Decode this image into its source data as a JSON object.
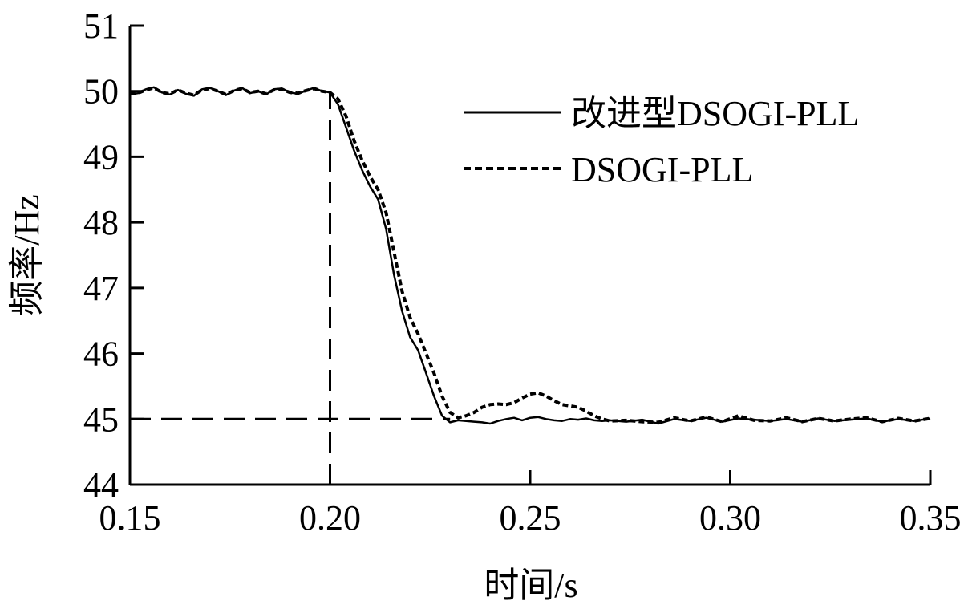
{
  "chart_data": {
    "type": "line",
    "xlabel": "时间/s",
    "ylabel": "频率/Hz",
    "xlim": [
      0.15,
      0.35
    ],
    "ylim": [
      44,
      51
    ],
    "xticks": [
      0.15,
      0.2,
      0.25,
      0.3,
      0.35
    ],
    "xtick_labels": [
      "0.15",
      "0.20",
      "0.25",
      "0.30",
      "0.35"
    ],
    "yticks": [
      44,
      45,
      46,
      47,
      48,
      49,
      50,
      51
    ],
    "ytick_labels": [
      "44",
      "45",
      "46",
      "47",
      "48",
      "49",
      "50",
      "51"
    ],
    "grid": false,
    "legend_position": "top-right",
    "reference_lines": [
      {
        "orientation": "vertical",
        "x": 0.2,
        "y_from": 44,
        "y_to": 50
      },
      {
        "orientation": "horizontal",
        "y": 45,
        "x_from": 0.15,
        "x_to": 0.23
      }
    ],
    "series": [
      {
        "name": "改进型DSOGI-PLL",
        "style": "solid",
        "x": [
          0.15,
          0.152,
          0.154,
          0.156,
          0.158,
          0.16,
          0.162,
          0.164,
          0.166,
          0.168,
          0.17,
          0.172,
          0.174,
          0.176,
          0.178,
          0.18,
          0.182,
          0.184,
          0.186,
          0.188,
          0.19,
          0.192,
          0.194,
          0.196,
          0.198,
          0.2,
          0.202,
          0.204,
          0.206,
          0.208,
          0.21,
          0.212,
          0.214,
          0.216,
          0.218,
          0.22,
          0.222,
          0.224,
          0.226,
          0.228,
          0.23,
          0.232,
          0.234,
          0.236,
          0.238,
          0.24,
          0.242,
          0.244,
          0.246,
          0.248,
          0.25,
          0.252,
          0.254,
          0.256,
          0.258,
          0.26,
          0.262,
          0.264,
          0.266,
          0.268,
          0.27,
          0.274,
          0.278,
          0.282,
          0.286,
          0.29,
          0.294,
          0.298,
          0.302,
          0.306,
          0.31,
          0.314,
          0.318,
          0.322,
          0.326,
          0.33,
          0.334,
          0.338,
          0.342,
          0.346,
          0.35
        ],
        "y": [
          49.95,
          49.97,
          50.03,
          50.06,
          49.98,
          49.95,
          50.02,
          49.96,
          49.93,
          50.03,
          50.05,
          50.0,
          49.94,
          50.01,
          50.05,
          49.97,
          50.0,
          49.95,
          50.03,
          50.04,
          49.98,
          49.96,
          50.01,
          50.05,
          50.0,
          49.98,
          49.8,
          49.45,
          49.1,
          48.8,
          48.55,
          48.35,
          47.9,
          47.2,
          46.65,
          46.25,
          46.05,
          45.7,
          45.35,
          45.05,
          44.95,
          44.98,
          44.97,
          44.96,
          44.95,
          44.93,
          44.97,
          45.0,
          45.02,
          44.98,
          45.02,
          45.03,
          45.0,
          44.98,
          44.97,
          45.0,
          44.99,
          45.01,
          44.98,
          44.97,
          44.98,
          44.96,
          44.99,
          44.93,
          45.0,
          44.97,
          45.02,
          44.96,
          45.01,
          44.99,
          44.97,
          45.0,
          44.96,
          45.01,
          44.97,
          44.99,
          45.01,
          44.96,
          45.0,
          44.97,
          45.01
        ]
      },
      {
        "name": "DSOGI-PLL",
        "style": "dashed",
        "x": [
          0.15,
          0.152,
          0.154,
          0.156,
          0.158,
          0.16,
          0.162,
          0.164,
          0.166,
          0.168,
          0.17,
          0.172,
          0.174,
          0.176,
          0.178,
          0.18,
          0.182,
          0.184,
          0.186,
          0.188,
          0.19,
          0.192,
          0.194,
          0.196,
          0.198,
          0.2,
          0.202,
          0.204,
          0.206,
          0.208,
          0.21,
          0.212,
          0.214,
          0.216,
          0.218,
          0.22,
          0.222,
          0.224,
          0.226,
          0.228,
          0.23,
          0.232,
          0.234,
          0.236,
          0.238,
          0.24,
          0.242,
          0.244,
          0.246,
          0.248,
          0.25,
          0.252,
          0.254,
          0.256,
          0.258,
          0.26,
          0.262,
          0.264,
          0.266,
          0.268,
          0.27,
          0.274,
          0.278,
          0.282,
          0.286,
          0.29,
          0.294,
          0.298,
          0.302,
          0.306,
          0.31,
          0.314,
          0.318,
          0.322,
          0.326,
          0.33,
          0.334,
          0.338,
          0.342,
          0.346,
          0.35
        ],
        "y": [
          49.96,
          49.97,
          50.02,
          50.05,
          49.98,
          49.96,
          50.02,
          49.97,
          49.94,
          50.02,
          50.04,
          50.0,
          49.95,
          50.01,
          50.04,
          49.98,
          50.0,
          49.96,
          50.02,
          50.03,
          49.98,
          49.97,
          50.01,
          50.04,
          50.0,
          49.98,
          49.88,
          49.62,
          49.25,
          48.95,
          48.7,
          48.5,
          48.15,
          47.55,
          46.95,
          46.55,
          46.3,
          46.0,
          45.7,
          45.35,
          45.1,
          45.02,
          45.05,
          45.1,
          45.18,
          45.22,
          45.23,
          45.22,
          45.25,
          45.32,
          45.38,
          45.4,
          45.35,
          45.28,
          45.22,
          45.2,
          45.18,
          45.12,
          45.05,
          45.0,
          44.97,
          44.98,
          44.96,
          44.95,
          45.02,
          44.97,
          45.03,
          44.96,
          45.05,
          44.98,
          44.97,
          45.02,
          44.96,
          45.01,
          44.97,
          45.0,
          45.02,
          44.96,
          45.01,
          44.97,
          45.01
        ]
      }
    ]
  }
}
